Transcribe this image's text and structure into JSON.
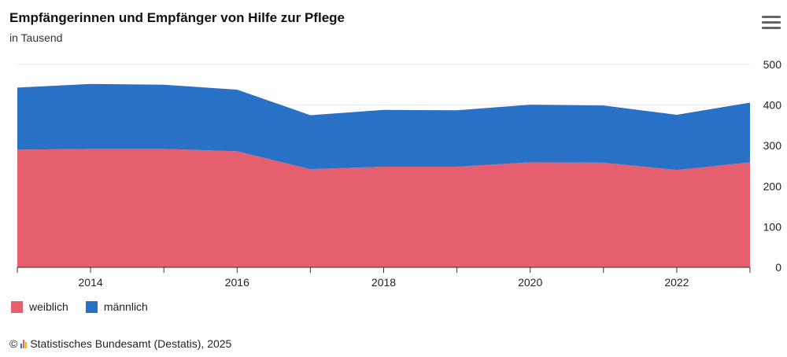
{
  "header": {
    "title": "Empfängerinnen und Empfänger von Hilfe zur Pflege",
    "subtitle": "in Tausend",
    "menu_icon": "hamburger-menu-icon"
  },
  "footer": {
    "copyright_symbol": "©",
    "logo_icon": "destatis-logo-icon",
    "source": "Statistisches Bundesamt (Destatis), 2025"
  },
  "colors": {
    "weiblich": "#e65f6e",
    "maennlich": "#2970c7",
    "grid": "#e6e6e6",
    "axis": "#333333"
  },
  "chart_data": {
    "type": "area",
    "stacked": true,
    "title": "Empfängerinnen und Empfänger von Hilfe zur Pflege",
    "subtitle": "in Tausend",
    "x": [
      2013,
      2014,
      2015,
      2016,
      2017,
      2018,
      2019,
      2020,
      2021,
      2022,
      2023
    ],
    "x_tick_labels": [
      "2014",
      "2016",
      "2018",
      "2020",
      "2022"
    ],
    "y_tick_labels": [
      "0",
      "100",
      "200",
      "300",
      "400",
      "500"
    ],
    "ylim": [
      0,
      500
    ],
    "y_axis_position": "right",
    "grid": true,
    "legend_position": "bottom-left",
    "series": [
      {
        "name": "weiblich",
        "color": "#e65f6e",
        "values": [
          290,
          292,
          292,
          286,
          242,
          248,
          248,
          259,
          258,
          240,
          259
        ]
      },
      {
        "name": "männlich",
        "color": "#2970c7",
        "values": [
          153,
          160,
          158,
          152,
          133,
          140,
          139,
          142,
          141,
          136,
          147
        ]
      }
    ]
  }
}
